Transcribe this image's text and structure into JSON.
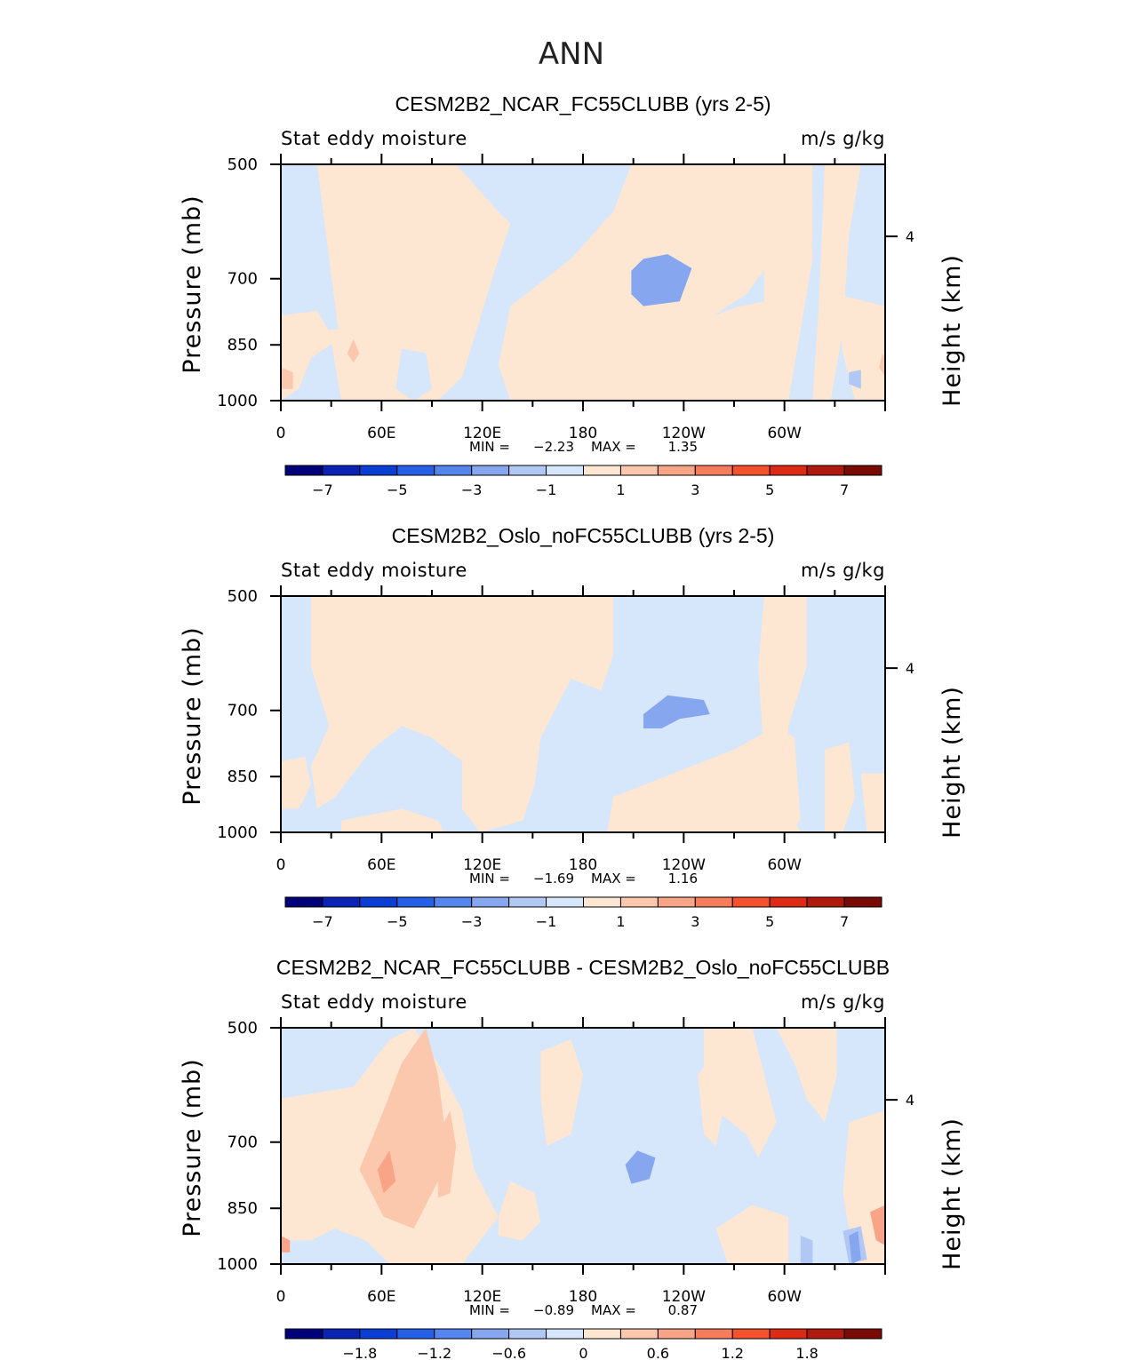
{
  "figure": {
    "title": "ANN",
    "colors": {
      "axis": "#000000",
      "background": "#ffffff"
    }
  },
  "chart_data": [
    {
      "type": "heatmap",
      "title": "CESM2B2_NCAR_FC55CLUBB (yrs 2-5)",
      "left_label": "Stat eddy moisture",
      "right_label": "m/s g/kg",
      "ylabel": "Pressure (mb)",
      "ylabel_right": "Height (km)",
      "x_ticks": [
        "0",
        "60E",
        "120E",
        "180",
        "120W",
        "60W"
      ],
      "y_ticks": [
        "500",
        "700",
        "850",
        "1000"
      ],
      "right_ticks": [
        "4"
      ],
      "ylim": [
        1000,
        500
      ],
      "stats": {
        "min_label": "MIN =",
        "min": "−2.23",
        "max_label": "MAX =",
        "max": "1.35"
      },
      "colorbar": {
        "labels": [
          "−7",
          "−5",
          "−3",
          "−1",
          "1",
          "3",
          "5",
          "7"
        ],
        "colors": [
          "#00007a",
          "#0b23b5",
          "#0a3ed5",
          "#2660e8",
          "#5585ee",
          "#86a6f0",
          "#b1c8f5",
          "#d6e6fb",
          "#fde7d3",
          "#fbc8ad",
          "#f9a387",
          "#f77c5c",
          "#f5512c",
          "#dd2a14",
          "#b01a0e",
          "#7a0a04"
        ]
      }
    },
    {
      "type": "heatmap",
      "title": "CESM2B2_Oslo_noFC55CLUBB (yrs 2-5)",
      "left_label": "Stat eddy moisture",
      "right_label": "m/s g/kg",
      "ylabel": "Pressure (mb)",
      "ylabel_right": "Height (km)",
      "x_ticks": [
        "0",
        "60E",
        "120E",
        "180",
        "120W",
        "60W"
      ],
      "y_ticks": [
        "500",
        "700",
        "850",
        "1000"
      ],
      "right_ticks": [
        "4"
      ],
      "ylim": [
        1000,
        500
      ],
      "stats": {
        "min_label": "MIN =",
        "min": "−1.69",
        "max_label": "MAX =",
        "max": "1.16"
      },
      "colorbar": {
        "labels": [
          "−7",
          "−5",
          "−3",
          "−1",
          "1",
          "3",
          "5",
          "7"
        ],
        "colors": [
          "#00007a",
          "#0b23b5",
          "#0a3ed5",
          "#2660e8",
          "#5585ee",
          "#86a6f0",
          "#b1c8f5",
          "#d6e6fb",
          "#fde7d3",
          "#fbc8ad",
          "#f9a387",
          "#f77c5c",
          "#f5512c",
          "#dd2a14",
          "#b01a0e",
          "#7a0a04"
        ]
      }
    },
    {
      "type": "heatmap",
      "title": "CESM2B2_NCAR_FC55CLUBB - CESM2B2_Oslo_noFC55CLUBB",
      "left_label": "Stat eddy moisture",
      "right_label": "m/s g/kg",
      "ylabel": "Pressure (mb)",
      "ylabel_right": "Height (km)",
      "x_ticks": [
        "0",
        "60E",
        "120E",
        "180",
        "120W",
        "60W"
      ],
      "y_ticks": [
        "500",
        "700",
        "850",
        "1000"
      ],
      "right_ticks": [
        "4"
      ],
      "ylim": [
        1000,
        500
      ],
      "stats": {
        "min_label": "MIN =",
        "min": "−0.89",
        "max_label": "MAX =",
        "max": "0.87"
      },
      "colorbar": {
        "labels": [
          "−1.8",
          "−1.2",
          "−0.6",
          "0",
          "0.6",
          "1.2",
          "1.8"
        ],
        "colors": [
          "#00007a",
          "#0b23b5",
          "#0a3ed5",
          "#2660e8",
          "#5585ee",
          "#86a6f0",
          "#b1c8f5",
          "#d6e6fb",
          "#fde7d3",
          "#fbc8ad",
          "#f9a387",
          "#f77c5c",
          "#f5512c",
          "#dd2a14",
          "#b01a0e",
          "#7a0a04"
        ]
      }
    }
  ]
}
